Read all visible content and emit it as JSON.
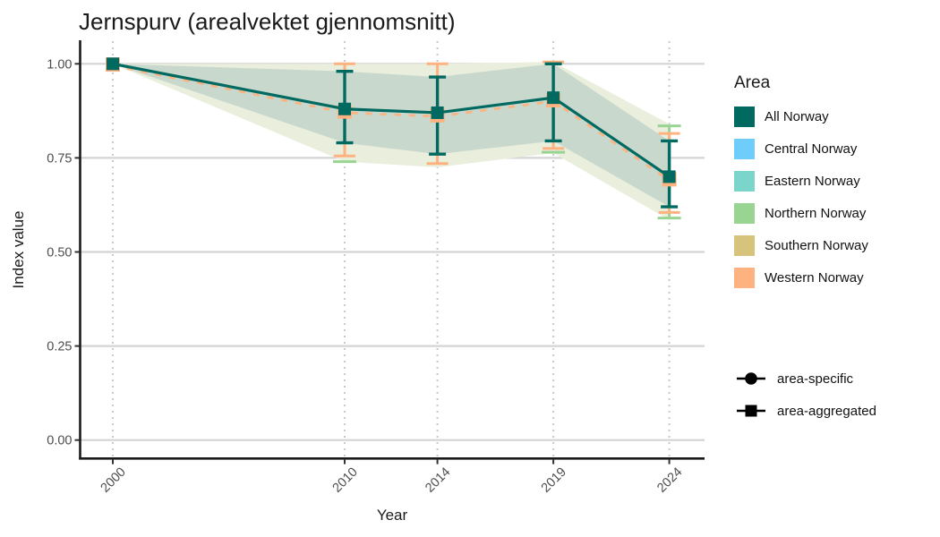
{
  "title": "Jernspurv (arealvektet gjennomsnitt)",
  "axes": {
    "x_label": "Year",
    "y_label": "Index value"
  },
  "legend_area": {
    "title": "Area",
    "items": [
      {
        "label": "All Norway",
        "color": "#006A61"
      },
      {
        "label": "Central Norway",
        "color": "#6FCDFB"
      },
      {
        "label": "Eastern Norway",
        "color": "#7CD5CB"
      },
      {
        "label": "Northern Norway",
        "color": "#99D493"
      },
      {
        "label": "Southern Norway",
        "color": "#D6C47D"
      },
      {
        "label": "Western Norway",
        "color": "#FDB27F"
      }
    ]
  },
  "legend_shape": {
    "items": [
      {
        "label": "area-specific",
        "shape": "circle"
      },
      {
        "label": "area-aggregated",
        "shape": "square"
      }
    ]
  },
  "chart_data": {
    "type": "line",
    "title": "Jernspurv (arealvektet gjennomsnitt)",
    "xlabel": "Year",
    "ylabel": "Index value",
    "x_ticks": [
      {
        "label": "2000",
        "value": 2000
      },
      {
        "label": "2010",
        "value": 2010
      },
      {
        "label": "2014",
        "value": 2014
      },
      {
        "label": "2019",
        "value": 2019
      },
      {
        "label": "2024",
        "value": 2024
      }
    ],
    "y_ticks": [
      {
        "label": "1.00",
        "value": 1.0
      },
      {
        "label": "0.75",
        "value": 0.75
      },
      {
        "label": "0.50",
        "value": 0.5
      },
      {
        "label": "0.25",
        "value": 0.25
      },
      {
        "label": "0.00",
        "value": 0.0
      }
    ],
    "ylim": [
      -0.05,
      1.05
    ],
    "grid": {
      "horizontal": "solid",
      "vertical": "dotted"
    },
    "legend_position": "right",
    "series": [
      {
        "name": "All Norway",
        "role": "area-aggregated",
        "marker": "square",
        "color": "#006A61",
        "x": [
          2000,
          2010,
          2014,
          2019,
          2024
        ],
        "y": [
          1.0,
          0.88,
          0.87,
          0.91,
          0.7
        ],
        "ci_low": [
          1.0,
          0.79,
          0.76,
          0.795,
          0.62
        ],
        "ci_high": [
          1.0,
          0.98,
          0.965,
          1.0,
          0.795
        ]
      },
      {
        "name": "Western Norway",
        "role": "area-aggregated",
        "marker": "square",
        "color": "#FDB27F",
        "note": "mostly hidden behind All Norway line",
        "x": [
          2000,
          2010,
          2014,
          2019,
          2024
        ],
        "y": [
          1.0,
          0.875,
          0.865,
          0.905,
          0.695
        ],
        "ci_low": [
          1.0,
          0.755,
          0.735,
          0.775,
          0.605
        ],
        "ci_high": [
          1.0,
          1.0,
          1.0,
          1.005,
          0.815
        ]
      },
      {
        "name": "Northern Norway",
        "role": "area-aggregated",
        "marker": "square",
        "color": "#99D493",
        "note": "only error-bar caps visible behind other series",
        "visible_caps": [
          {
            "x": 2010,
            "value": 0.74
          },
          {
            "x": 2019,
            "value": 0.765
          },
          {
            "x": 2024,
            "value": 0.835
          },
          {
            "x": 2024,
            "value": 0.59
          }
        ]
      }
    ],
    "bands": {
      "outer": {
        "color": "#E9EEDD",
        "x": [
          2000,
          2010,
          2014,
          2019,
          2024
        ],
        "low": [
          1.0,
          0.74,
          0.725,
          0.763,
          0.585
        ],
        "high": [
          1.0,
          1.0,
          1.0,
          1.005,
          0.84
        ]
      },
      "inner": {
        "color": "#C9D8CD",
        "x": [
          2000,
          2010,
          2014,
          2019,
          2024
        ],
        "low": [
          1.0,
          0.79,
          0.76,
          0.795,
          0.62
        ],
        "high": [
          1.0,
          0.98,
          0.965,
          1.0,
          0.795
        ]
      }
    }
  }
}
